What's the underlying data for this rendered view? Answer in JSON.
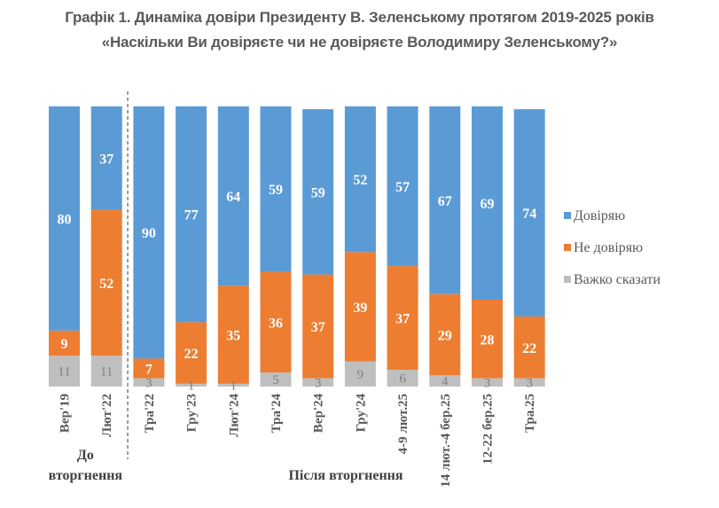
{
  "chart_data": {
    "type": "bar",
    "stacked": true,
    "title": "Графік 1. Динаміка довіри Президенту В. Зеленському протягом 2019-2025 років",
    "subtitle": "«Наскільки Ви довіряєте чи не довіряєте Володимиру Зеленському?»",
    "xlabel": "",
    "ylabel": "",
    "ylim": [
      0,
      100
    ],
    "grid": false,
    "legend_position": "right",
    "categories": [
      "Вер'19",
      "Лют'22",
      "Тра'22",
      "Гру'23",
      "Лют'24",
      "Тра'24",
      "Вер'24",
      "Гру'24",
      "4-9 лют.25",
      "14 лют.-4 бер.25",
      "12-22 бер.25",
      "Тра.25"
    ],
    "series": [
      {
        "name": "Довіряю",
        "color": "#5B9BD5",
        "values": [
          80,
          37,
          90,
          77,
          64,
          59,
          59,
          52,
          57,
          67,
          69,
          74
        ]
      },
      {
        "name": "Не довіряю",
        "color": "#ED7D31",
        "values": [
          9,
          52,
          7,
          22,
          35,
          36,
          37,
          39,
          37,
          29,
          28,
          22
        ]
      },
      {
        "name": "Важко сказати",
        "color": "#BFBFBF",
        "values": [
          11,
          11,
          3,
          1,
          1,
          5,
          3,
          9,
          6,
          4,
          3,
          3
        ]
      }
    ],
    "groups": [
      {
        "label_line1": "До",
        "label_line2": "вторгнення",
        "categories_count": 2
      },
      {
        "label": "Після вторгнення",
        "categories_count": 10
      }
    ],
    "divider_after_index": 1
  }
}
